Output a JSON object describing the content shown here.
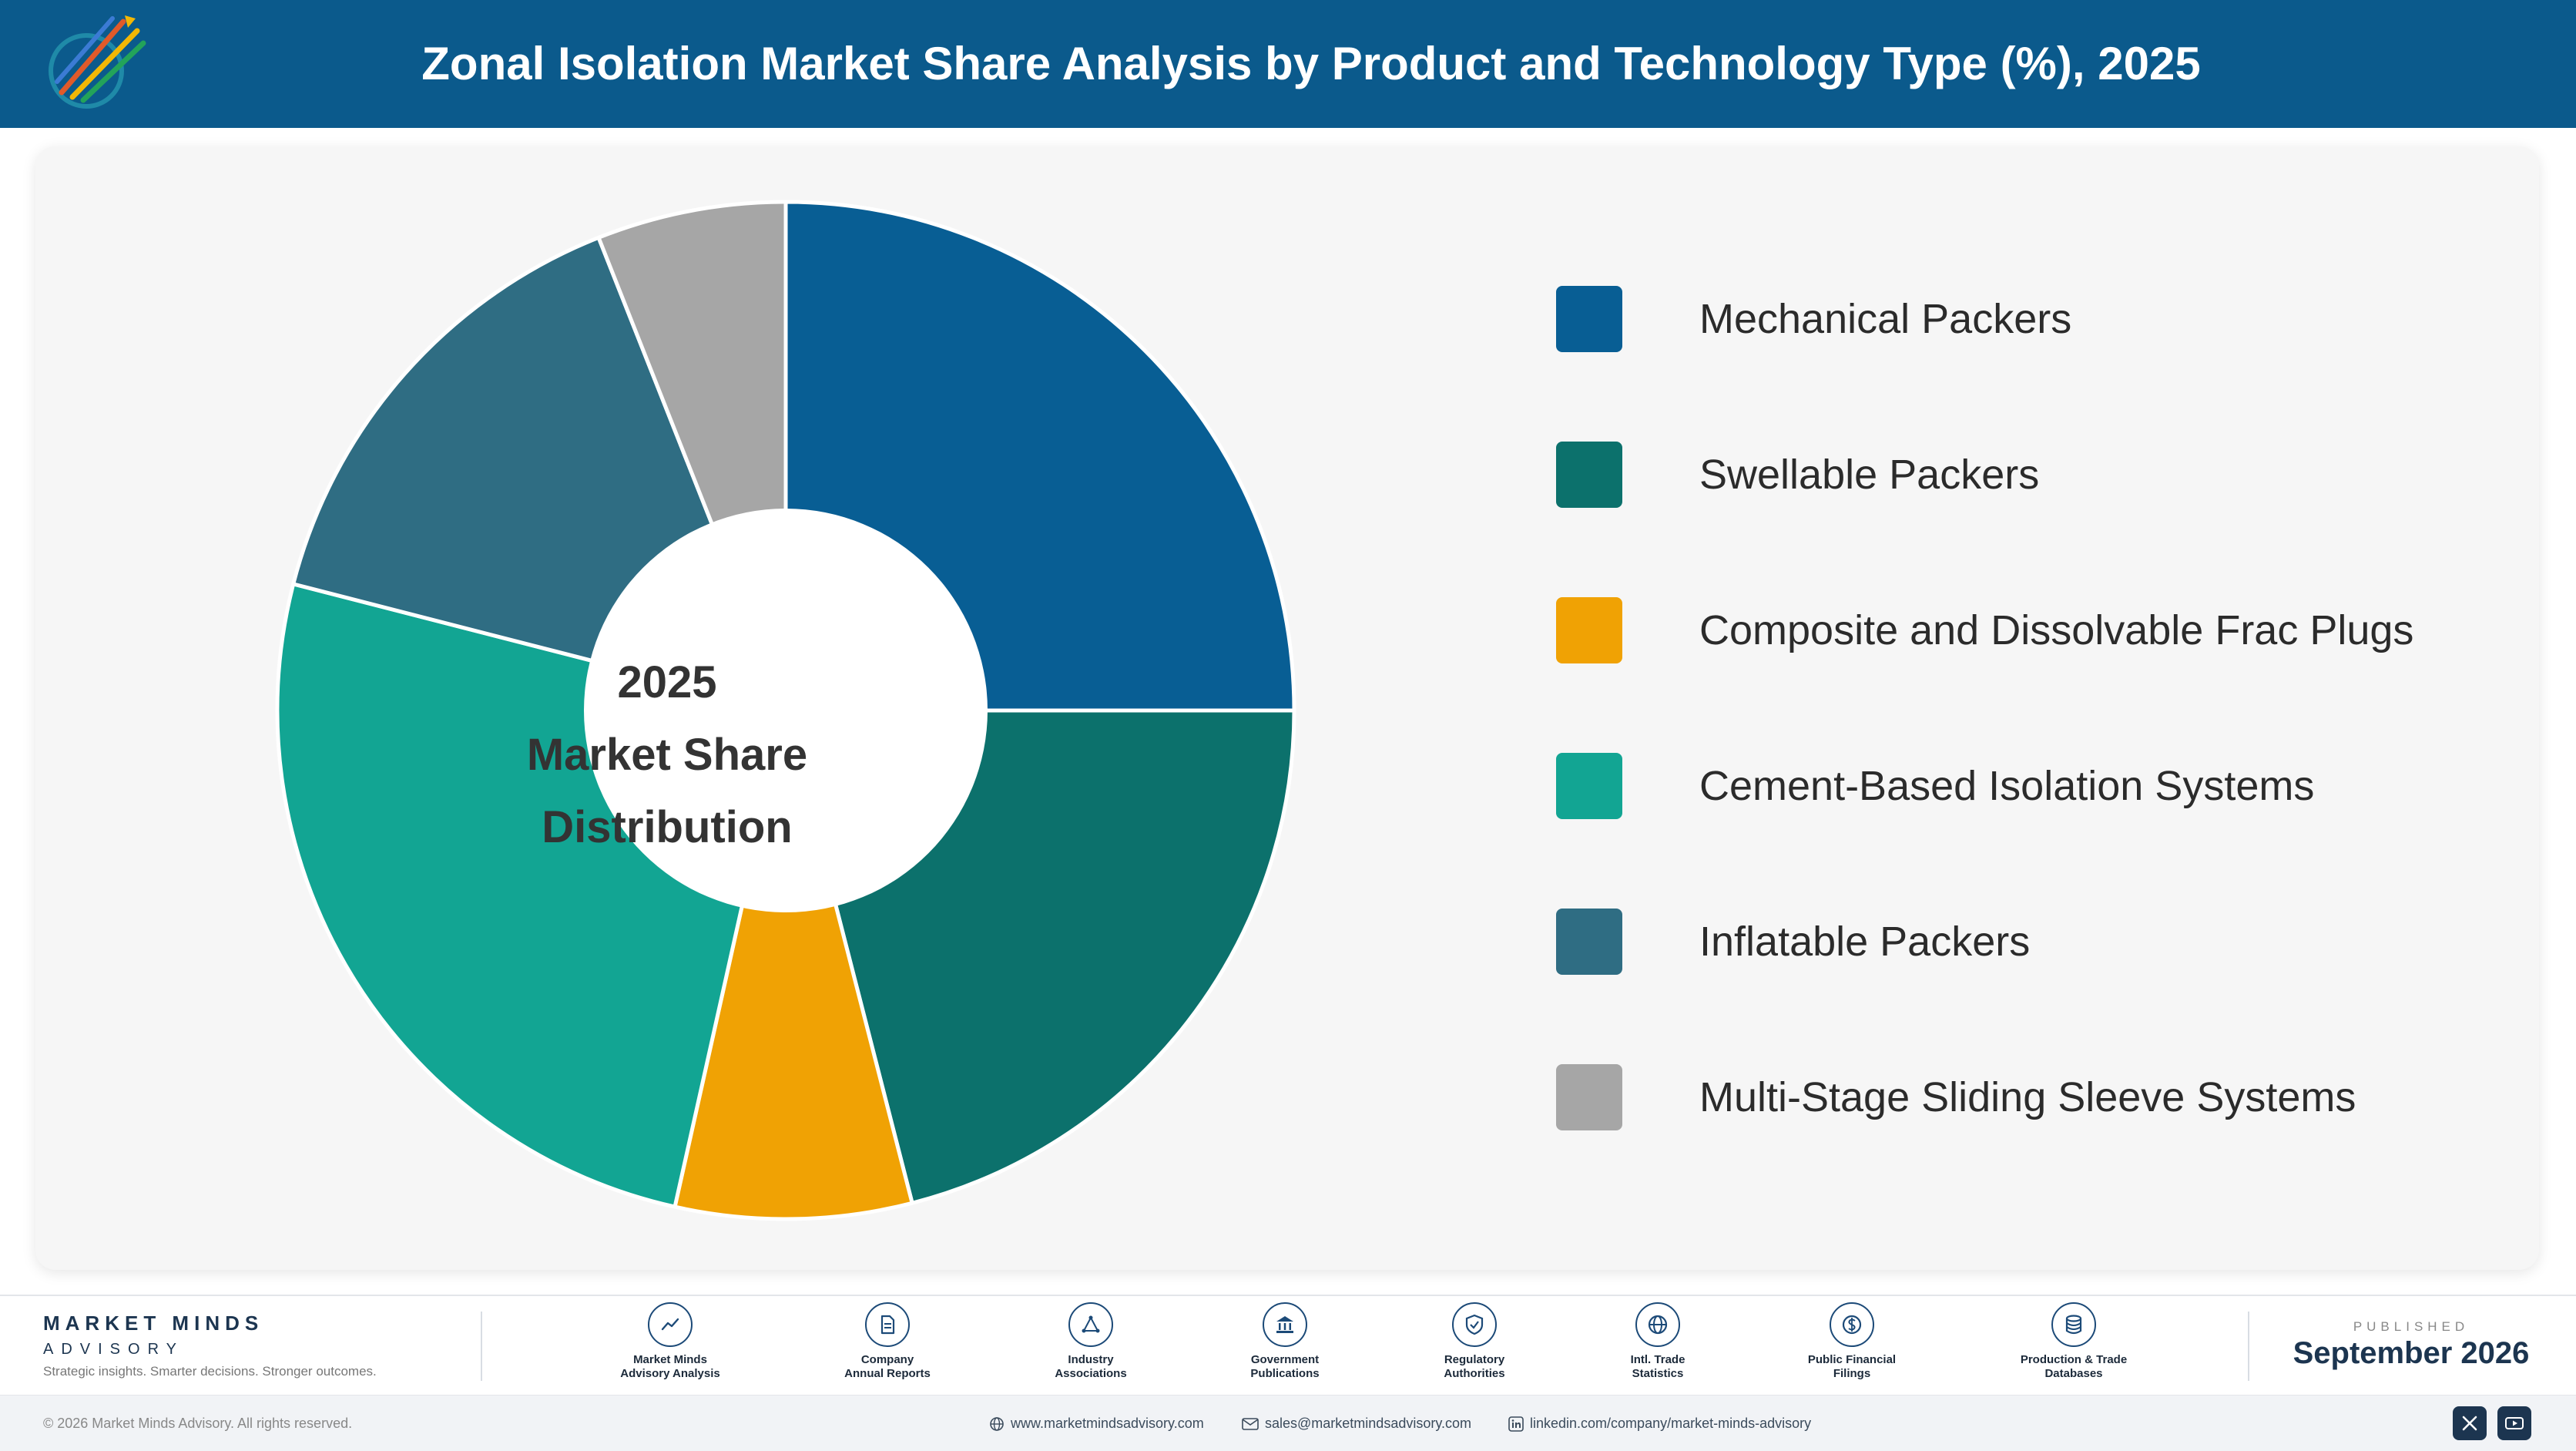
{
  "header": {
    "title": "Zonal Isolation Market Share Analysis by Product and Technology Type (%), 2025"
  },
  "center_label": {
    "line1": "2025",
    "line2": "Market Share",
    "line3": "Distribution"
  },
  "chart_data": {
    "type": "pie",
    "title": "Zonal Isolation Market Share Analysis by Product and Technology Type (%), 2025",
    "categories": [
      "Mechanical Packers",
      "Swellable Packers",
      "Composite and Dissolvable Frac Plugs",
      "Cement-Based Isolation Systems",
      "Inflatable Packers",
      "Multi-Stage Sliding Sleeve Systems"
    ],
    "values": [
      25,
      21,
      7.5,
      25.5,
      15,
      6
    ],
    "colors": [
      "#085e94",
      "#0c716c",
      "#f0a204",
      "#12a593",
      "#2f6d83",
      "#a6a6a6"
    ],
    "legend_position": "right",
    "donut_center": true
  },
  "footer": {
    "brand_name": "MARKET MINDS",
    "brand_sub": "ADVISORY",
    "brand_tag": "Strategic insights. Smarter decisions. Stronger outcomes.",
    "sources": [
      {
        "line1": "Market Minds",
        "line2": "Advisory Analysis",
        "icon": "trend-icon"
      },
      {
        "line1": "Company",
        "line2": "Annual Reports",
        "icon": "document-icon"
      },
      {
        "line1": "Industry",
        "line2": "Associations",
        "icon": "network-icon"
      },
      {
        "line1": "Government",
        "line2": "Publications",
        "icon": "government-icon"
      },
      {
        "line1": "Regulatory",
        "line2": "Authorities",
        "icon": "shield-icon"
      },
      {
        "line1": "Intl. Trade",
        "line2": "Statistics",
        "icon": "globe-icon"
      },
      {
        "line1": "Public Financial",
        "line2": "Filings",
        "icon": "dollar-icon"
      },
      {
        "line1": "Production & Trade",
        "line2": "Databases",
        "icon": "database-icon"
      }
    ],
    "published_label": "PUBLISHED",
    "published_date": "September 2026"
  },
  "bottombar": {
    "copyright": "© 2026 Market Minds Advisory. All rights reserved.",
    "website": "www.marketmindsadvisory.com",
    "email": "sales@marketmindsadvisory.com",
    "linkedin": "linkedin.com/company/market-minds-advisory"
  },
  "colors": {
    "header_bg": "#0b5a8c",
    "brand_navy": "#1c3550"
  }
}
